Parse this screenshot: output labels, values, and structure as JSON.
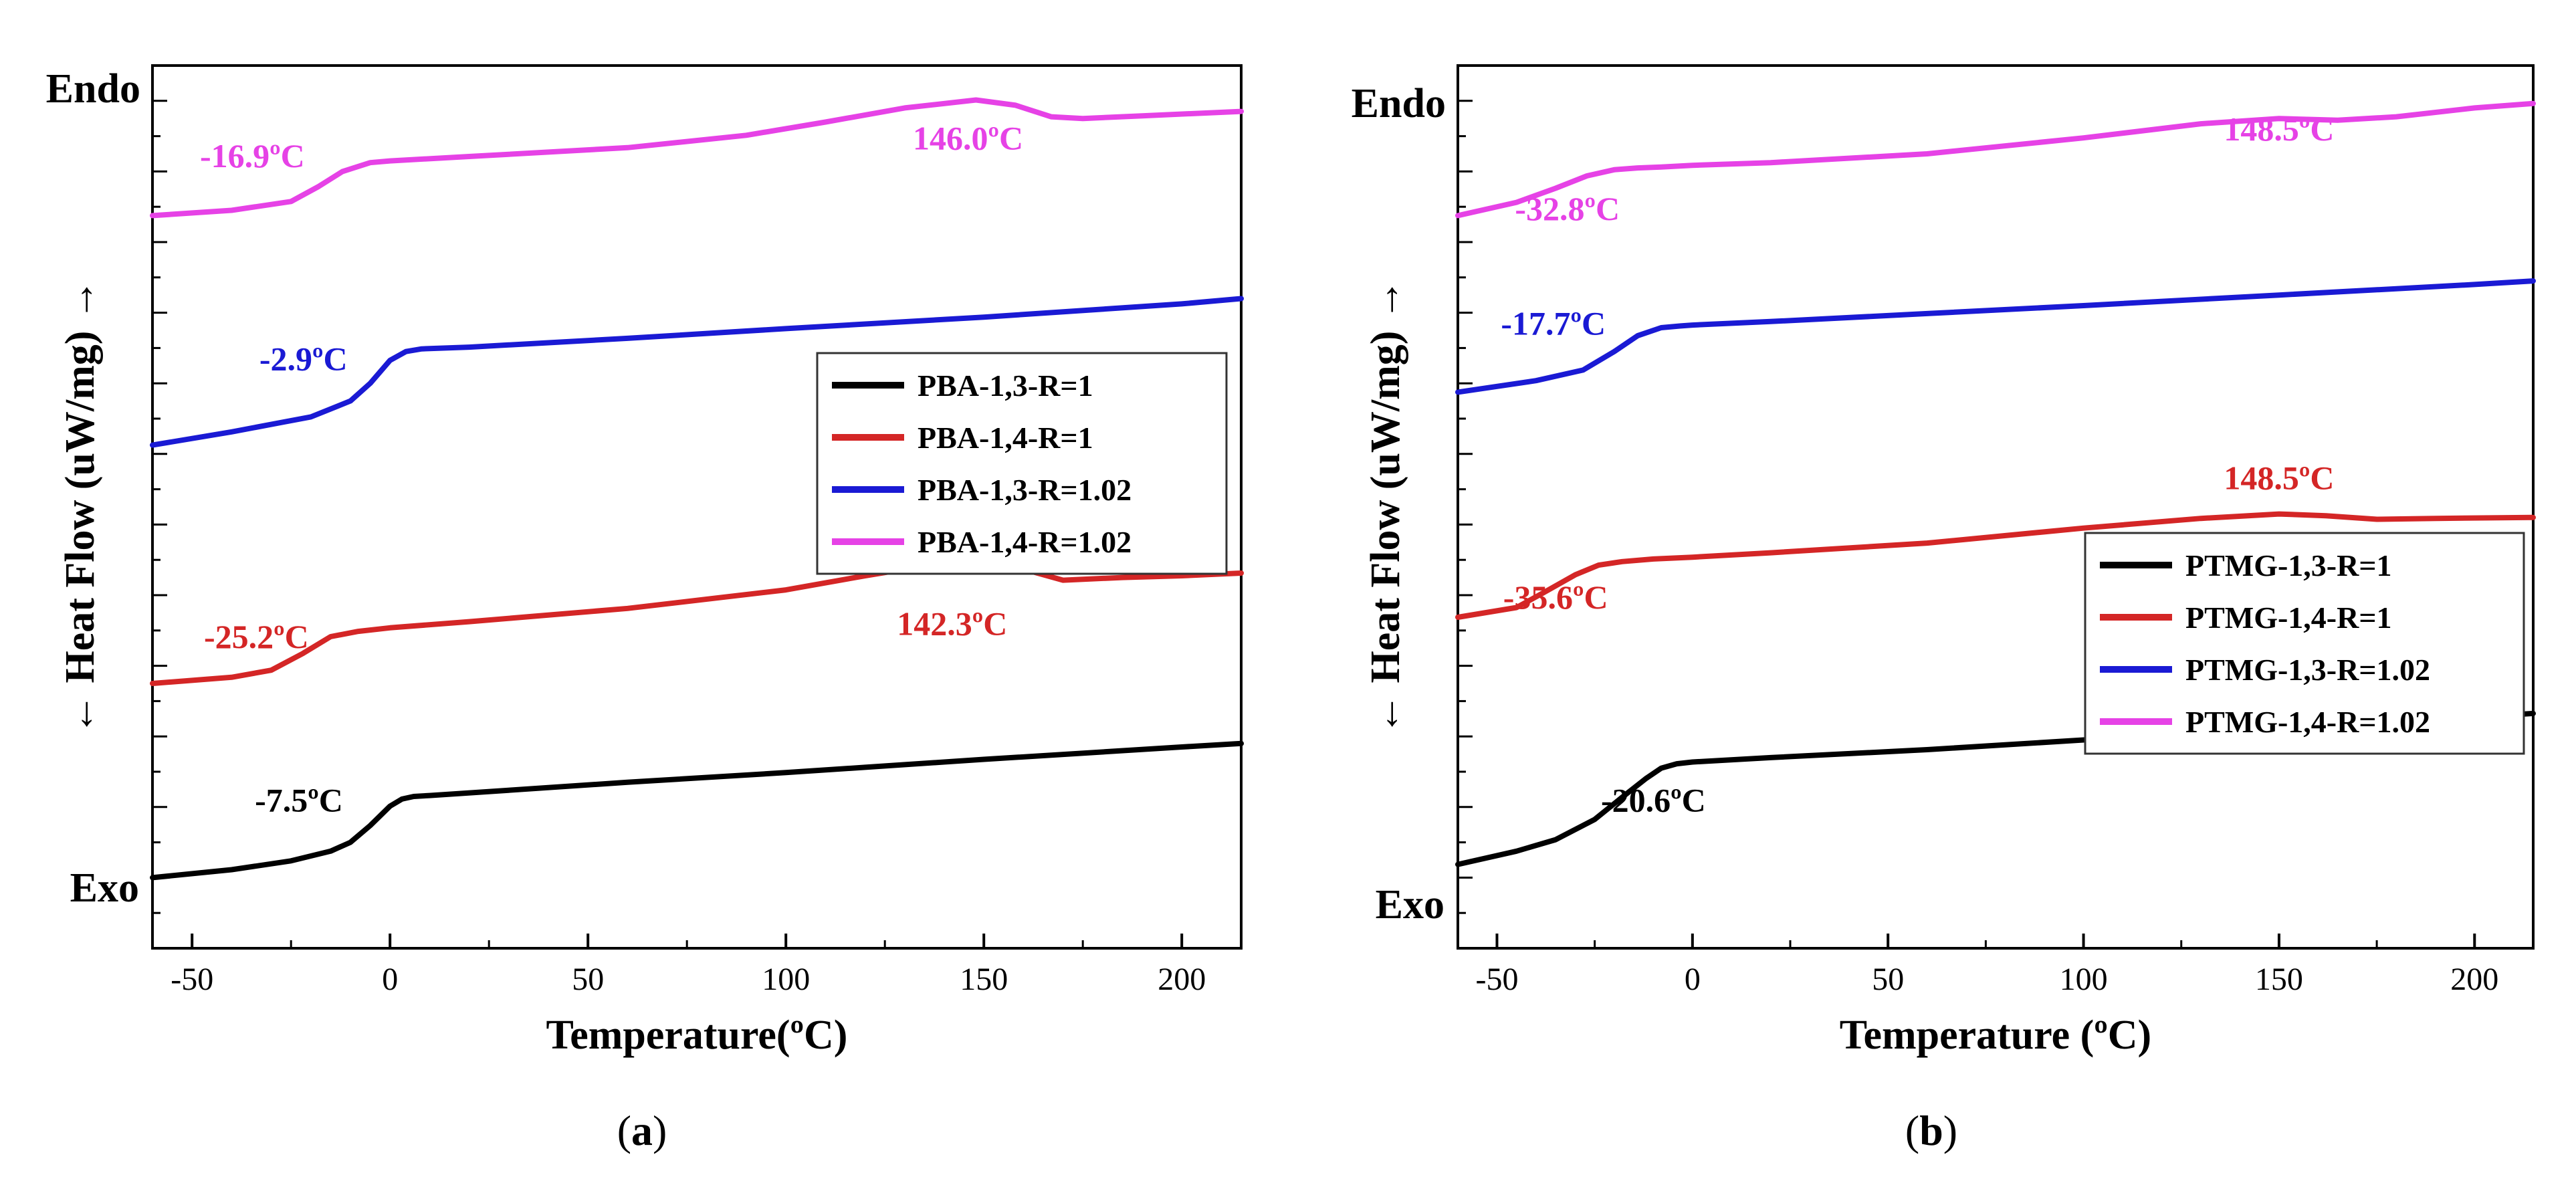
{
  "chart_data": [
    {
      "type": "line",
      "panel_label": "a",
      "xlabel": "Temperature(ºC)",
      "ylabel": "← Heat Flow (uW/mg) →",
      "xlim": [
        -60,
        215
      ],
      "ylim": [
        0,
        100
      ],
      "xticks": [
        -50,
        0,
        50,
        100,
        150,
        200
      ],
      "endo_label": "Endo",
      "exo_label": "Exo",
      "yticks_labeled": false,
      "legend_position": "center-right",
      "series": [
        {
          "name": "PBA-1,3-R=1",
          "color": "#000000",
          "x": [
            -60,
            -40,
            -25,
            -15,
            -10,
            -5,
            0,
            3,
            6,
            10,
            30,
            60,
            100,
            150,
            200,
            215
          ],
          "y": [
            8.0,
            8.9,
            9.9,
            11.0,
            12.0,
            13.9,
            16.1,
            16.9,
            17.2,
            17.3,
            17.9,
            18.8,
            19.9,
            21.4,
            22.8,
            23.2
          ]
        },
        {
          "name": "PBA-1,4-R=1",
          "color": "#d42626",
          "x": [
            -60,
            -40,
            -30,
            -22,
            -15,
            -8,
            0,
            20,
            60,
            100,
            120,
            135,
            148,
            158,
            170,
            185,
            200,
            215
          ],
          "y": [
            30.0,
            30.7,
            31.5,
            33.4,
            35.3,
            35.9,
            36.3,
            37.0,
            38.5,
            40.6,
            42.2,
            43.3,
            43.7,
            43.2,
            41.7,
            42.0,
            42.2,
            42.5
          ]
        },
        {
          "name": "PBA-1,3-R=1.02",
          "color": "#1a1ad4",
          "x": [
            -60,
            -40,
            -20,
            -10,
            -5,
            0,
            4,
            8,
            20,
            60,
            100,
            150,
            200,
            215
          ],
          "y": [
            57.0,
            58.5,
            60.2,
            62.0,
            64.0,
            66.6,
            67.6,
            67.9,
            68.1,
            69.1,
            70.2,
            71.5,
            73.0,
            73.6
          ]
        },
        {
          "name": "PBA-1,4-R=1.02",
          "color": "#e642e6",
          "x": [
            -60,
            -40,
            -25,
            -18,
            -12,
            -5,
            0,
            20,
            60,
            90,
            110,
            130,
            148,
            158,
            167,
            175,
            190,
            215
          ],
          "y": [
            83.0,
            83.6,
            84.6,
            86.3,
            88.0,
            89.0,
            89.2,
            89.7,
            90.7,
            92.1,
            93.6,
            95.2,
            96.1,
            95.5,
            94.2,
            94.0,
            94.3,
            94.8
          ]
        }
      ],
      "annotations": [
        {
          "text": "-16.9ºC",
          "series": "PBA-1,4-R=1.02",
          "x": -48,
          "y": 88.5
        },
        {
          "text": "146.0ºC",
          "series": "PBA-1,4-R=1.02",
          "x": 146,
          "y": 90.5
        },
        {
          "text": "-2.9ºC",
          "series": "PBA-1,3-R=1.02",
          "x": -33,
          "y": 65.5
        },
        {
          "text": "-25.2ºC",
          "series": "PBA-1,4-R=1",
          "x": -47,
          "y": 34.0
        },
        {
          "text": "142.3ºC",
          "series": "PBA-1,4-R=1",
          "x": 142,
          "y": 35.5
        },
        {
          "text": "-7.5ºC",
          "series": "PBA-1,3-R=1",
          "x": -23,
          "y": 15.5
        }
      ]
    },
    {
      "type": "line",
      "panel_label": "b",
      "xlabel": "Temperature (ºC)",
      "ylabel": "← Heat Flow (uW/mg) →",
      "xlim": [
        -60,
        215
      ],
      "ylim": [
        0,
        100
      ],
      "xticks": [
        -50,
        0,
        50,
        100,
        150,
        200
      ],
      "endo_label": "Endo",
      "exo_label": "Exo",
      "yticks_labeled": false,
      "legend_position": "lower-right",
      "series": [
        {
          "name": "PTMG-1,3-R=1",
          "color": "#000000",
          "x": [
            -60,
            -45,
            -35,
            -25,
            -18,
            -12,
            -8,
            -4,
            0,
            20,
            60,
            100,
            150,
            200,
            215
          ],
          "y": [
            9.5,
            11.0,
            12.3,
            14.6,
            17.1,
            19.2,
            20.4,
            20.9,
            21.1,
            21.6,
            22.5,
            23.6,
            24.8,
            26.2,
            26.6
          ]
        },
        {
          "name": "PTMG-1,4-R=1",
          "color": "#d42626",
          "x": [
            -60,
            -45,
            -38,
            -30,
            -24,
            -18,
            -10,
            0,
            20,
            60,
            100,
            130,
            150,
            162,
            175,
            190,
            215
          ],
          "y": [
            37.5,
            38.6,
            40.3,
            42.3,
            43.4,
            43.8,
            44.1,
            44.3,
            44.8,
            45.9,
            47.6,
            48.7,
            49.2,
            49.0,
            48.6,
            48.7,
            48.8
          ]
        },
        {
          "name": "PTMG-1,3-R=1.02",
          "color": "#1a1ad4",
          "x": [
            -60,
            -40,
            -28,
            -20,
            -14,
            -8,
            -3,
            0,
            20,
            60,
            100,
            150,
            200,
            215
          ],
          "y": [
            63.0,
            64.3,
            65.5,
            67.6,
            69.4,
            70.3,
            70.5,
            70.6,
            71.0,
            71.9,
            72.8,
            74.0,
            75.2,
            75.6
          ]
        },
        {
          "name": "PTMG-1,4-R=1.02",
          "color": "#e642e6",
          "x": [
            -60,
            -45,
            -35,
            -27,
            -20,
            -14,
            -8,
            0,
            20,
            60,
            100,
            130,
            150,
            165,
            180,
            200,
            215
          ],
          "y": [
            83.0,
            84.5,
            86.1,
            87.5,
            88.2,
            88.4,
            88.5,
            88.7,
            89.0,
            90.0,
            91.8,
            93.4,
            94.0,
            93.8,
            94.2,
            95.2,
            95.7
          ]
        }
      ],
      "annotations": [
        {
          "text": "148.5ºC",
          "series": "PTMG-1,4-R=1.02",
          "x": 150,
          "y": 91.5
        },
        {
          "text": "-32.8ºC",
          "series": "PTMG-1,4-R=1.02",
          "x": -32,
          "y": 82.5
        },
        {
          "text": "-17.7ºC",
          "series": "PTMG-1,3-R=1.02",
          "x": -49,
          "y": 69.5
        },
        {
          "text": "148.5ºC",
          "series": "PTMG-1,4-R=1",
          "x": 150,
          "y": 52.0
        },
        {
          "text": "-35.6ºC",
          "series": "PTMG-1,4-R=1",
          "x": -35,
          "y": 38.5
        },
        {
          "text": "-20.6ºC",
          "series": "PTMG-1,3-R=1",
          "x": -10,
          "y": 15.5
        }
      ]
    }
  ],
  "captions": {
    "a": {
      "open": "(",
      "letter": "a",
      "close": ")"
    },
    "b": {
      "open": "(",
      "letter": "b",
      "close": ")"
    }
  }
}
